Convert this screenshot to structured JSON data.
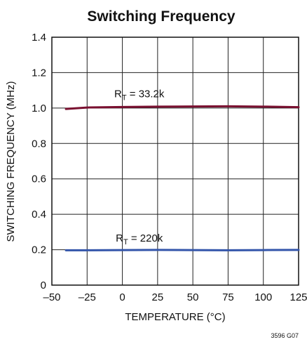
{
  "chart_data": {
    "type": "line",
    "title": "Switching Frequency",
    "xlabel": "TEMPERATURE (°C)",
    "ylabel": "SWITCHING FREQUENCY (MHz)",
    "xlim": [
      -50,
      125
    ],
    "ylim": [
      0,
      1.4
    ],
    "x_ticks": [
      -50,
      -25,
      0,
      25,
      50,
      75,
      100,
      125
    ],
    "x_tick_labels": [
      "–50",
      "–25",
      "0",
      "25",
      "50",
      "75",
      "100",
      "125"
    ],
    "y_ticks": [
      0,
      0.2,
      0.4,
      0.6,
      0.8,
      1.0,
      1.2,
      1.4
    ],
    "y_tick_labels": [
      "0",
      "0.2",
      "0.4",
      "0.6",
      "0.8",
      "1.0",
      "1.2",
      "1.4"
    ],
    "grid": true,
    "series": [
      {
        "color": "#7a1030",
        "x": [
          -40,
          -25,
          0,
          25,
          50,
          75,
          100,
          125
        ],
        "y": [
          0.995,
          1.003,
          1.006,
          1.008,
          1.009,
          1.01,
          1.008,
          1.005
        ]
      },
      {
        "color": "#3355aa",
        "x": [
          -40,
          -25,
          0,
          25,
          50,
          75,
          100,
          125
        ],
        "y": [
          0.197,
          0.197,
          0.198,
          0.199,
          0.198,
          0.197,
          0.198,
          0.199
        ]
      }
    ],
    "annotations": [
      {
        "R": "R",
        "sub": "T",
        "rest": " = 33.2k",
        "x": 12,
        "y": 1.06
      },
      {
        "R": "R",
        "sub": "T",
        "rest": " = 220k",
        "x": 12,
        "y": 0.245
      }
    ],
    "figure_id": "3596 G07"
  }
}
